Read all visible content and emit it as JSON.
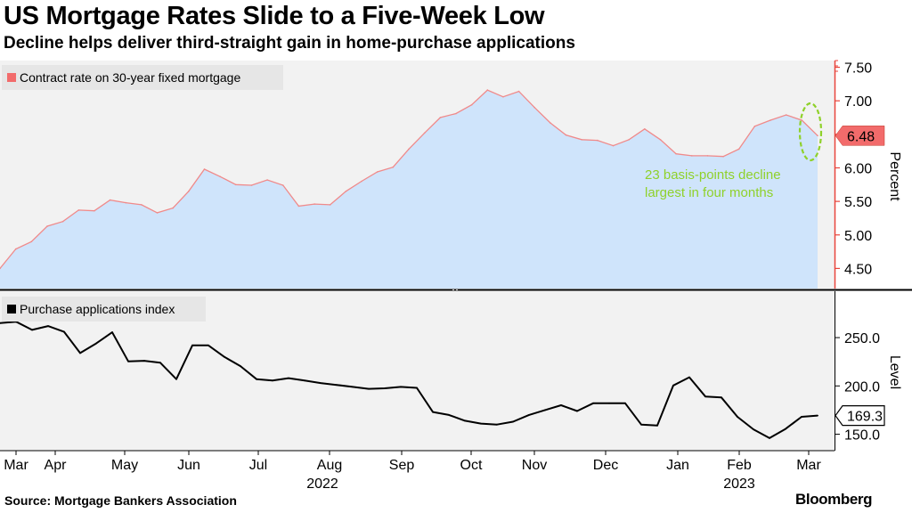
{
  "title": "US Mortgage Rates Slide to a Five-Week Low",
  "subtitle": "Decline helps deliver third-straight gain in home-purchase applications",
  "source": "Source: Mortgage Bankers Association",
  "brand": "Bloomberg",
  "colors": {
    "area_fill": "#cfe4fb",
    "rate_line": "#f08a8a",
    "rate_badge": "#f26b6b",
    "annotation": "#8fd12a",
    "panel_bg": "#f2f2f2"
  },
  "chart_data": [
    {
      "type": "area",
      "title": "US Mortgage Rates Slide to a Five-Week Low",
      "legend": "Contract rate on 30-year fixed mortgage",
      "legend_position": "top-left",
      "ylabel": "Percent",
      "ylim": [
        4.2,
        7.6
      ],
      "yticks": [
        "4.50",
        "5.00",
        "5.50",
        "6.00",
        "6.50",
        "7.00",
        "7.50"
      ],
      "ytick_values": [
        4.5,
        5.0,
        5.5,
        6.0,
        6.5,
        7.0,
        7.5
      ],
      "last_value_label": "6.48",
      "last_value": 6.48,
      "annotation": {
        "line1": "23 basis-points decline",
        "line2": "largest in four months"
      },
      "values": [
        4.5,
        4.79,
        4.9,
        5.13,
        5.2,
        5.37,
        5.36,
        5.52,
        5.48,
        5.45,
        5.33,
        5.4,
        5.65,
        5.98,
        5.87,
        5.75,
        5.74,
        5.82,
        5.74,
        5.43,
        5.46,
        5.45,
        5.65,
        5.8,
        5.94,
        6.01,
        6.28,
        6.52,
        6.75,
        6.81,
        6.94,
        7.16,
        7.06,
        7.14,
        6.9,
        6.67,
        6.49,
        6.42,
        6.41,
        6.33,
        6.42,
        6.58,
        6.42,
        6.21,
        6.18,
        6.18,
        6.17,
        6.28,
        6.62,
        6.71,
        6.79,
        6.71,
        6.48
      ]
    },
    {
      "type": "line",
      "legend": "Purchase applications index",
      "legend_position": "top-left",
      "ylabel": "Level",
      "ylim": [
        133,
        298
      ],
      "yticks": [
        "150.0",
        "200.0",
        "250.0"
      ],
      "ytick_values": [
        150,
        200,
        250
      ],
      "last_value_label": "169.3",
      "last_value": 169.3,
      "values": [
        265.0,
        266.5,
        258.0,
        262.0,
        256.0,
        234.0,
        244.0,
        255.5,
        225.5,
        226.0,
        224.0,
        207.0,
        242.0,
        242.0,
        230.0,
        220.5,
        207.0,
        205.5,
        208.0,
        205.5,
        203.0,
        201.0,
        199.0,
        197.0,
        197.5,
        199.0,
        198.0,
        173.0,
        170.0,
        164.0,
        161.0,
        160.0,
        163.0,
        170.0,
        175.0,
        180.0,
        174.0,
        182.0,
        182.0,
        182.0,
        160.0,
        159.0,
        200.5,
        209.0,
        189.0,
        188.0,
        168.0,
        155.0,
        146.0,
        155.5,
        168.0,
        169.3
      ]
    }
  ],
  "x_axis": {
    "months": [
      "Mar",
      "Apr",
      "May",
      "Jun",
      "Jul",
      "Aug",
      "Sep",
      "Oct",
      "Nov",
      "Dec",
      "Jan",
      "Feb",
      "Mar"
    ],
    "years": [
      "2022",
      "2023"
    ]
  }
}
